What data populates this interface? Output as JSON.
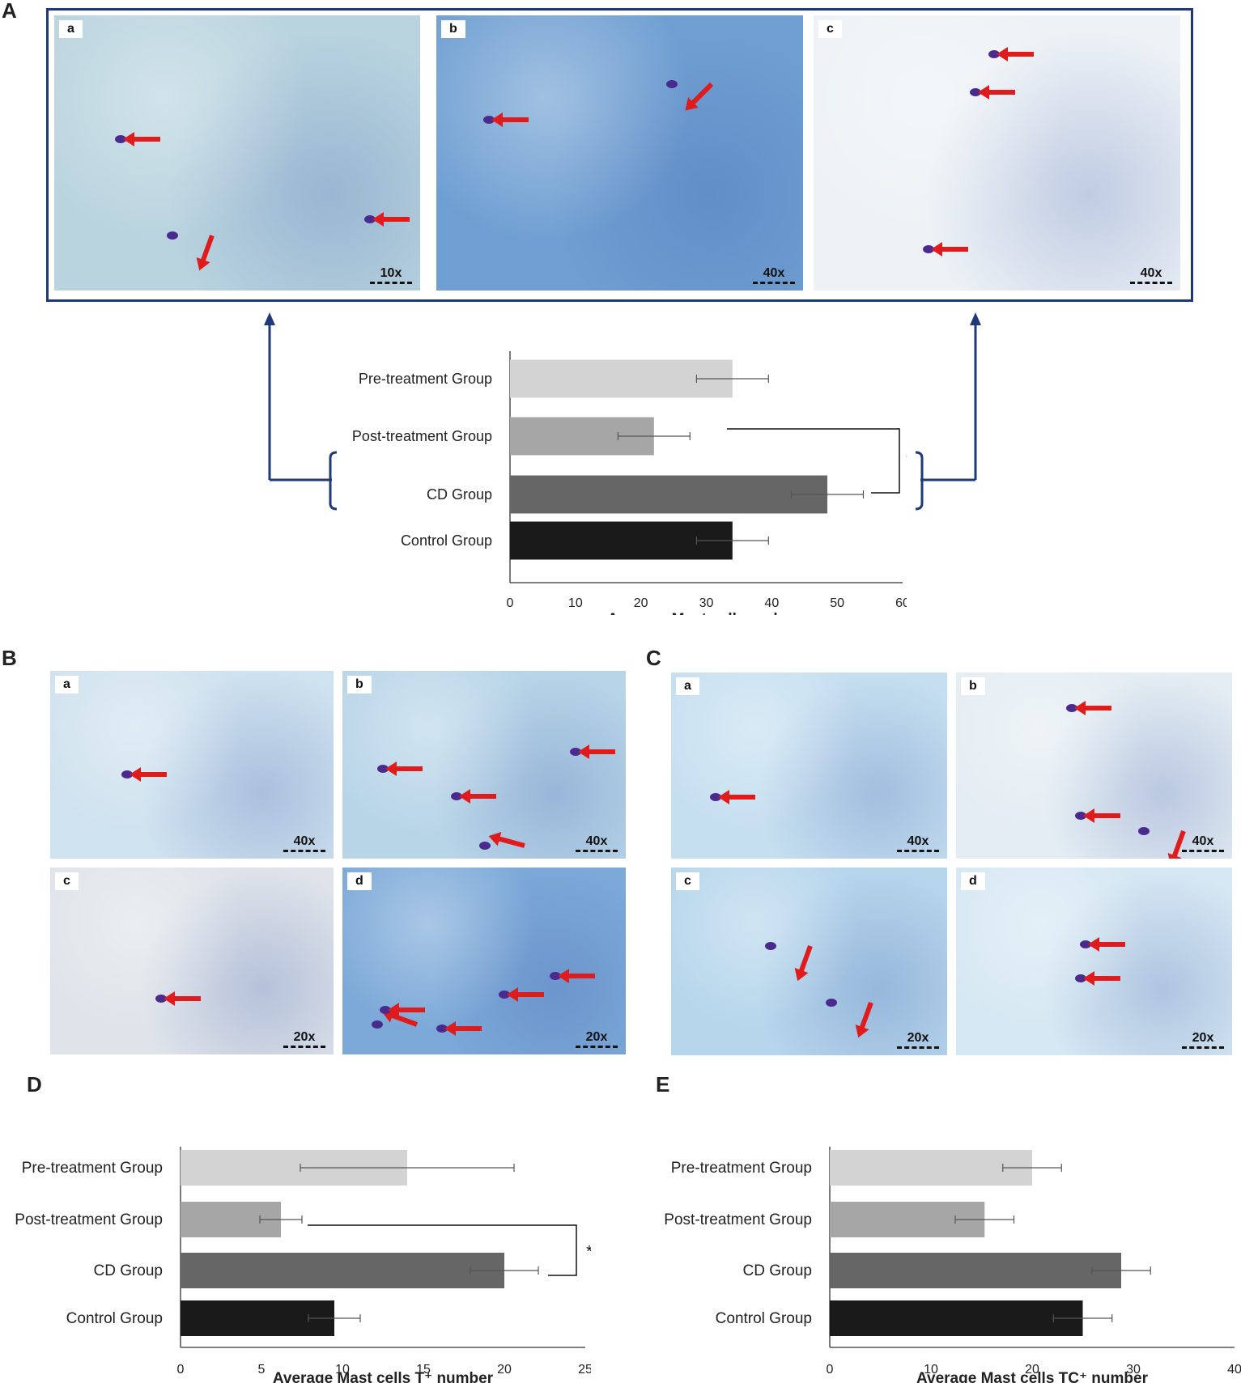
{
  "panels": {
    "A": "A",
    "B": "B",
    "C": "C",
    "D": "D",
    "E": "E"
  },
  "micrographs": {
    "A": [
      {
        "label": "a",
        "mag": "10x",
        "bg": "#b9d4df"
      },
      {
        "label": "b",
        "mag": "40x",
        "bg": "#6f9fd2"
      },
      {
        "label": "c",
        "mag": "40x",
        "bg": "#edf2f6"
      }
    ],
    "B": [
      {
        "label": "a",
        "mag": "40x",
        "bg": "#cfe2ef"
      },
      {
        "label": "b",
        "mag": "40x",
        "bg": "#b8d5e8"
      },
      {
        "label": "c",
        "mag": "20x",
        "bg": "#dfe4ea"
      },
      {
        "label": "d",
        "mag": "20x",
        "bg": "#7ca9d8"
      }
    ],
    "C": [
      {
        "label": "a",
        "mag": "40x",
        "bg": "#c5dff0"
      },
      {
        "label": "b",
        "mag": "40x",
        "bg": "#e4edf3"
      },
      {
        "label": "c",
        "mag": "20x",
        "bg": "#b6d6ec"
      },
      {
        "label": "d",
        "mag": "20x",
        "bg": "#d6e8f3"
      }
    ]
  },
  "chart_data": [
    {
      "id": "A",
      "type": "bar",
      "orientation": "horizontal",
      "categories": [
        "Pre-treatment Group",
        "Post-treatment Group",
        "CD Group",
        "Control Group"
      ],
      "values": [
        34,
        22,
        48.5,
        34
      ],
      "errors": [
        5.5,
        5.5,
        5.5,
        5.5
      ],
      "colors": [
        "#d3d3d3",
        "#a6a6a6",
        "#666666",
        "#1a1a1a"
      ],
      "xlabel": "Average Mast cell number",
      "xlim": [
        0,
        60
      ],
      "xticks": [
        0,
        10,
        20,
        30,
        40,
        50,
        60
      ],
      "significance": {
        "between": [
          "Post-treatment Group",
          "CD Group"
        ],
        "label": "*"
      }
    },
    {
      "id": "D",
      "type": "bar",
      "orientation": "horizontal",
      "categories": [
        "Pre-treatment Group",
        "Post-treatment Group",
        "CD Group",
        "Control Group"
      ],
      "values": [
        14,
        6.2,
        20,
        9.5
      ],
      "errors": [
        6.6,
        1.3,
        2.1,
        1.6
      ],
      "colors": [
        "#d3d3d3",
        "#a6a6a6",
        "#666666",
        "#1a1a1a"
      ],
      "xlabel": "Average  Mast cells T⁺ number",
      "xlim": [
        0,
        25
      ],
      "xticks": [
        0,
        5,
        10,
        15,
        20,
        25
      ],
      "significance": {
        "between": [
          "Post-treatment Group",
          "CD Group"
        ],
        "label": "*"
      }
    },
    {
      "id": "E",
      "type": "bar",
      "orientation": "horizontal",
      "categories": [
        "Pre-treatment Group",
        "Post-treatment Group",
        "CD Group",
        "Control Group"
      ],
      "values": [
        20,
        15.3,
        28.8,
        25
      ],
      "errors": [
        2.9,
        2.9,
        2.9,
        2.9
      ],
      "colors": [
        "#d3d3d3",
        "#a6a6a6",
        "#666666",
        "#1a1a1a"
      ],
      "xlabel": "Average Mast cells TC⁺ number",
      "xlim": [
        0,
        40
      ],
      "xticks": [
        0,
        10,
        20,
        30,
        40
      ]
    }
  ]
}
